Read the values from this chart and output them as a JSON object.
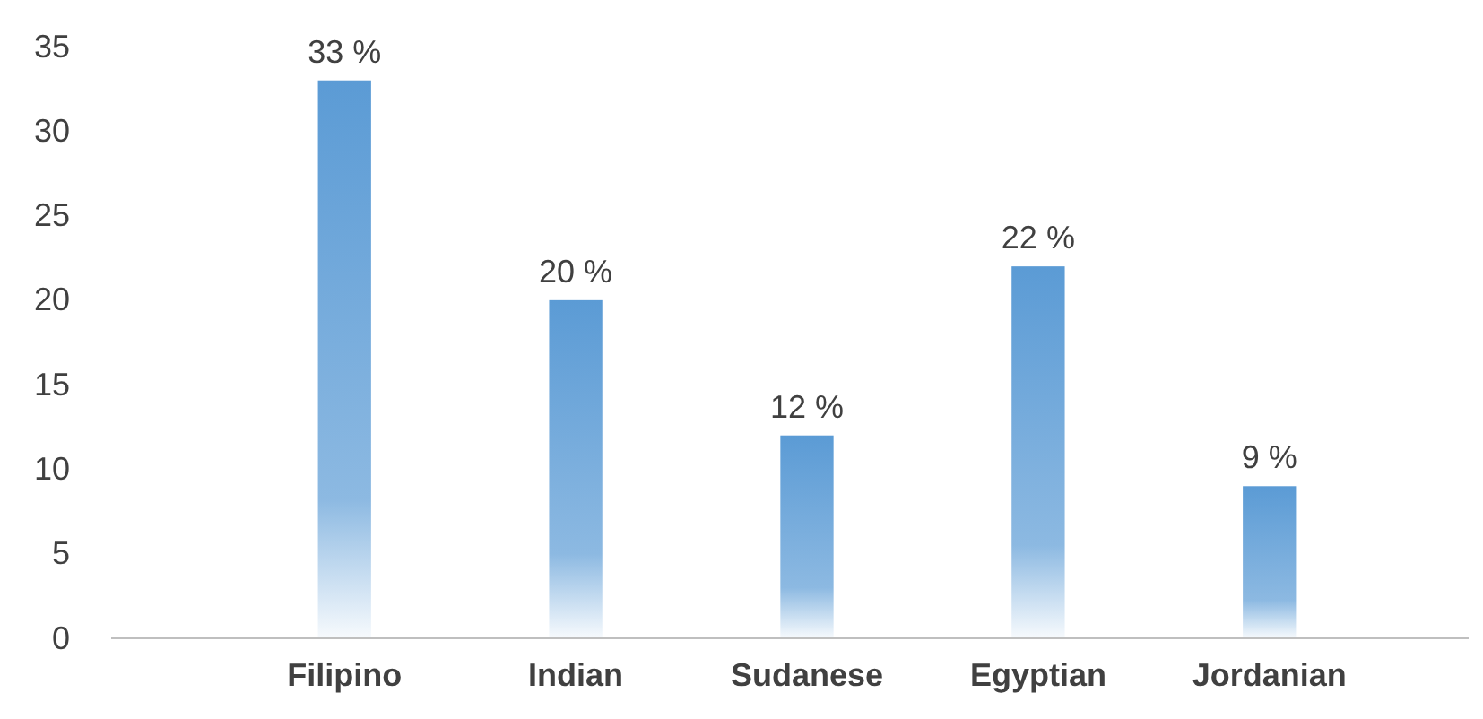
{
  "chart_data": {
    "type": "bar",
    "categories": [
      "Filipino",
      "Indian",
      "Sudanese",
      "Egyptian",
      "Jordanian"
    ],
    "values": [
      33,
      20,
      12,
      22,
      9
    ],
    "value_labels": [
      "33 %",
      "20 %",
      "12 %",
      "22 %",
      "9 %"
    ],
    "color": "#5b9bd5",
    "ylim": [
      0,
      35
    ],
    "yticks": [
      0,
      5,
      10,
      15,
      20,
      25,
      30,
      35
    ]
  }
}
